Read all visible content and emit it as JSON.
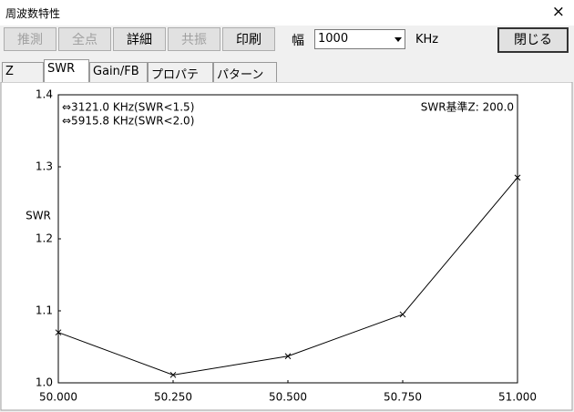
{
  "window": {
    "title": "周波数特性",
    "close": "×"
  },
  "toolbar": {
    "buttons": [
      {
        "label": "推測",
        "disabled": true
      },
      {
        "label": "全点",
        "disabled": true
      },
      {
        "label": "詳細",
        "disabled": false
      },
      {
        "label": "共振",
        "disabled": true
      },
      {
        "label": "印刷",
        "disabled": false
      }
    ],
    "width_label": "幅",
    "width_value": "1000",
    "unit": "KHz",
    "close_button": "閉じる"
  },
  "tabs": [
    "Z",
    "SWR",
    "Gain/FB",
    "プロパティ",
    "パターン"
  ],
  "selected_tab": 1,
  "chart_data": {
    "type": "line",
    "ylabel": "SWR",
    "annotations": [
      "⇔3121.0 KHz(SWR<1.5)",
      "⇔5915.8 KHz(SWR<2.0)",
      "SWR基準Z: 200.0"
    ],
    "x": [
      50.0,
      50.25,
      50.5,
      50.75,
      51.0
    ],
    "series": [
      {
        "color": "#000000",
        "values": [
          1.07,
          1.011,
          1.037,
          1.095,
          1.285
        ]
      }
    ],
    "xlim": [
      50.0,
      51.0
    ],
    "xticks": [
      {
        "value": 50.0,
        "label": "50.000"
      },
      {
        "value": 50.25,
        "label": "50.250"
      },
      {
        "value": 50.5,
        "label": "50.500"
      },
      {
        "value": 50.75,
        "label": "50.750"
      },
      {
        "value": 51.0,
        "label": "51.000"
      }
    ],
    "ylim": [
      1.0,
      1.4
    ],
    "yticks": [
      {
        "value": 1.0,
        "label": "1.0"
      },
      1.1,
      1.2,
      1.3,
      1.4
    ],
    "grid": false
  }
}
